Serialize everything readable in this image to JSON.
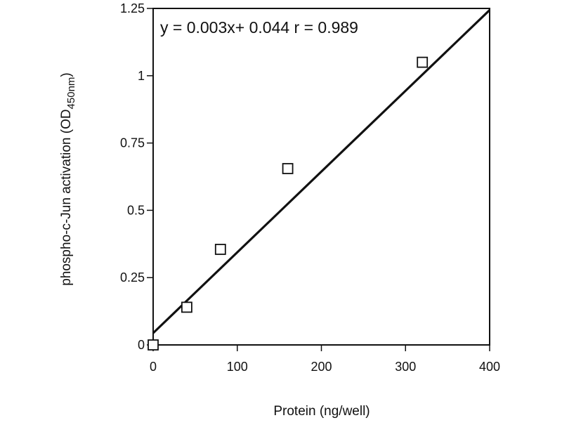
{
  "chart_data": {
    "type": "scatter",
    "xlabel": "Protein (ng/well)",
    "ylabel_main": "phospho-c-Jun activation (OD",
    "ylabel_sub": "450nm",
    "ylabel_close": ")",
    "annotation": "y = 0.003x+ 0.044  r = 0.989",
    "xlim": [
      0,
      400
    ],
    "ylim": [
      0,
      1.25
    ],
    "x_ticks": [
      {
        "value": 0,
        "label": "0"
      },
      {
        "value": 100,
        "label": "100"
      },
      {
        "value": 200,
        "label": "200"
      },
      {
        "value": 300,
        "label": "300"
      },
      {
        "value": 400,
        "label": "400"
      }
    ],
    "y_ticks": [
      {
        "value": 0,
        "label": "0"
      },
      {
        "value": 0.25,
        "label": "0.25"
      },
      {
        "value": 0.5,
        "label": "0.5"
      },
      {
        "value": 0.75,
        "label": "0.75"
      },
      {
        "value": 1,
        "label": "1"
      },
      {
        "value": 1.25,
        "label": "1.25"
      }
    ],
    "points": [
      {
        "x": 0,
        "y": 0.0
      },
      {
        "x": 40,
        "y": 0.14
      },
      {
        "x": 80,
        "y": 0.355
      },
      {
        "x": 160,
        "y": 0.655
      },
      {
        "x": 320,
        "y": 1.05
      }
    ],
    "fit_line": {
      "slope": 0.003,
      "intercept": 0.044
    },
    "marker": "open-square",
    "grid": false,
    "legend": "none"
  }
}
